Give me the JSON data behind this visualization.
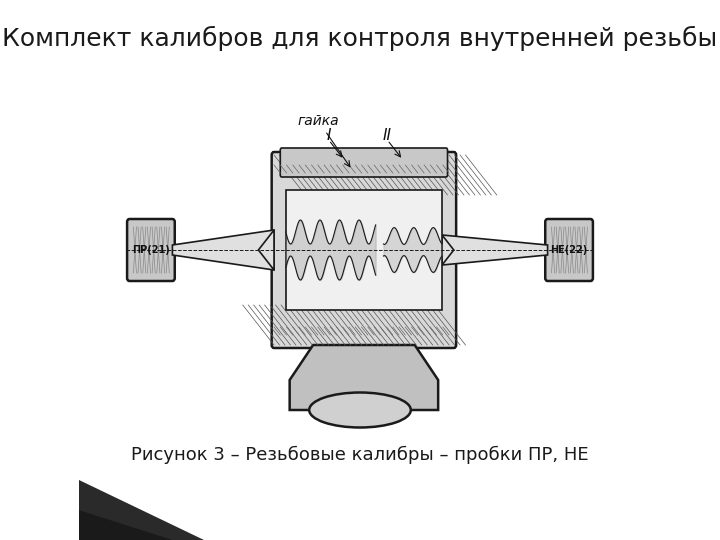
{
  "title": "Комплект калибров для контроля внутренней резьбы",
  "caption": "Рисунок 3 – Резьбовые калибры – пробки ПР, НЕ",
  "title_fontsize": 18,
  "caption_fontsize": 13,
  "bg_color": "#f5f5f5",
  "title_color": "#1a1a1a",
  "caption_color": "#1a1a1a",
  "slide_bg": "#ffffff",
  "accent_color": "#2a2a2a",
  "label_pr": "ПР(21)",
  "label_ne": "НЕ(22)",
  "label_gayka": "гайка",
  "label_I": "I",
  "label_II": "II"
}
